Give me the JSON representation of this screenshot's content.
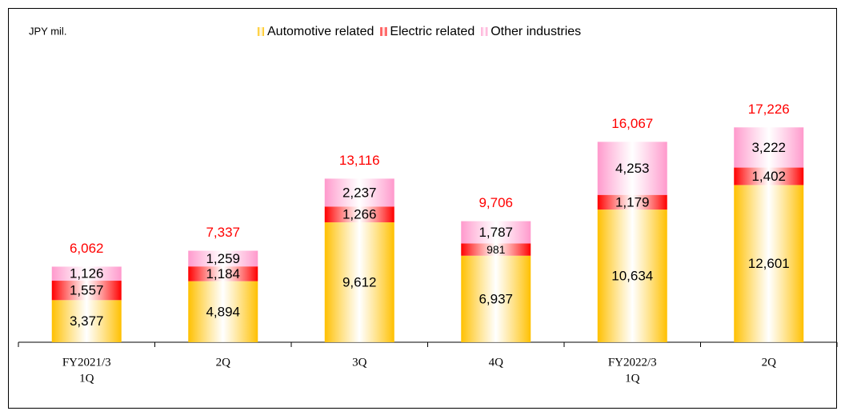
{
  "chart_data": {
    "type": "stacked_bar",
    "unit_label": "JPY mil.",
    "categories": [
      [
        "FY2021/3",
        "1Q"
      ],
      [
        "2Q"
      ],
      [
        "3Q"
      ],
      [
        "4Q"
      ],
      [
        "FY2022/3",
        "1Q"
      ],
      [
        "2Q"
      ]
    ],
    "series": [
      {
        "name": "Automotive related",
        "color": "#ffc000",
        "values": [
          3377,
          4894,
          9612,
          6937,
          10634,
          12601
        ],
        "value_labels": [
          "3,377",
          "4,894",
          "9,612",
          "6,937",
          "10,634",
          "12,601"
        ]
      },
      {
        "name": "Electric related",
        "color": "#ff0000",
        "values": [
          1557,
          1184,
          1266,
          981,
          1179,
          1402
        ],
        "value_labels": [
          "1,557",
          "1,184",
          "1,266",
          "981",
          "1,179",
          "1,402"
        ]
      },
      {
        "name": "Other industries",
        "color": "#ff99cc",
        "values": [
          1126,
          1259,
          2237,
          1787,
          4253,
          3222
        ],
        "value_labels": [
          "1,126",
          "1,259",
          "2,237",
          "1,787",
          "4,253",
          "3,222"
        ]
      }
    ],
    "totals": [
      6062,
      7337,
      13116,
      9706,
      16067,
      17226
    ],
    "total_labels": [
      "6,062",
      "7,337",
      "13,116",
      "9,706",
      "16,067",
      "17,226"
    ],
    "total_color": "#ff0000",
    "ylim": [
      0,
      25000
    ],
    "legend": "top"
  }
}
